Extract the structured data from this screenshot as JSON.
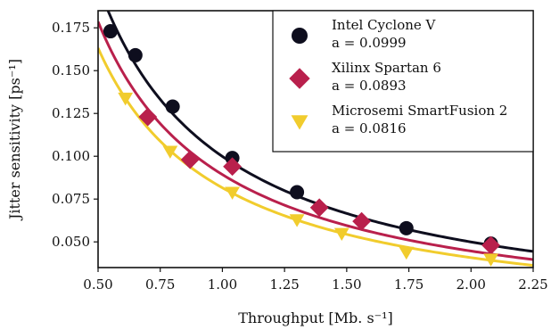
{
  "chart_data": {
    "type": "scatter",
    "xlabel": "Throughput [Mb. s⁻¹]",
    "ylabel": "Jitter sensitivity [ps⁻¹]",
    "xlim": [
      0.5,
      2.25
    ],
    "ylim": [
      0.035,
      0.185
    ],
    "x_ticks": [
      0.5,
      0.75,
      1.0,
      1.25,
      1.5,
      1.75,
      2.0,
      2.25
    ],
    "x_tick_labels": [
      "0.50",
      "0.75",
      "1.00",
      "1.25",
      "1.50",
      "1.75",
      "2.00",
      "2.25"
    ],
    "y_ticks": [
      0.05,
      0.075,
      0.1,
      0.125,
      0.15,
      0.175
    ],
    "y_tick_labels": [
      "0.050",
      "0.075",
      "0.100",
      "0.125",
      "0.150",
      "0.175"
    ],
    "legend_position": "top-right",
    "series": [
      {
        "name": "Intel Cyclone V",
        "fit_label": "a = 0.0999",
        "a": 0.0999,
        "marker": "circle",
        "color": "#0e0e1e",
        "x": [
          0.55,
          0.65,
          0.8,
          1.04,
          1.3,
          1.74,
          2.08
        ],
        "y": [
          0.173,
          0.159,
          0.129,
          0.099,
          0.079,
          0.058,
          0.049
        ]
      },
      {
        "name": "Xilinx Spartan 6",
        "fit_label": "a = 0.0893",
        "a": 0.0893,
        "marker": "diamond",
        "color": "#b9204c",
        "x": [
          0.7,
          0.87,
          1.04,
          1.39,
          1.56,
          2.08
        ],
        "y": [
          0.123,
          0.098,
          0.094,
          0.07,
          0.062,
          0.048
        ]
      },
      {
        "name": "Microsemi SmartFusion 2",
        "fit_label": "a = 0.0816",
        "a": 0.0816,
        "marker": "triangle-down",
        "color": "#f1cc2d",
        "x": [
          0.61,
          0.79,
          1.04,
          1.3,
          1.48,
          1.74,
          2.08
        ],
        "y": [
          0.134,
          0.103,
          0.079,
          0.063,
          0.055,
          0.044,
          0.04
        ]
      }
    ]
  }
}
